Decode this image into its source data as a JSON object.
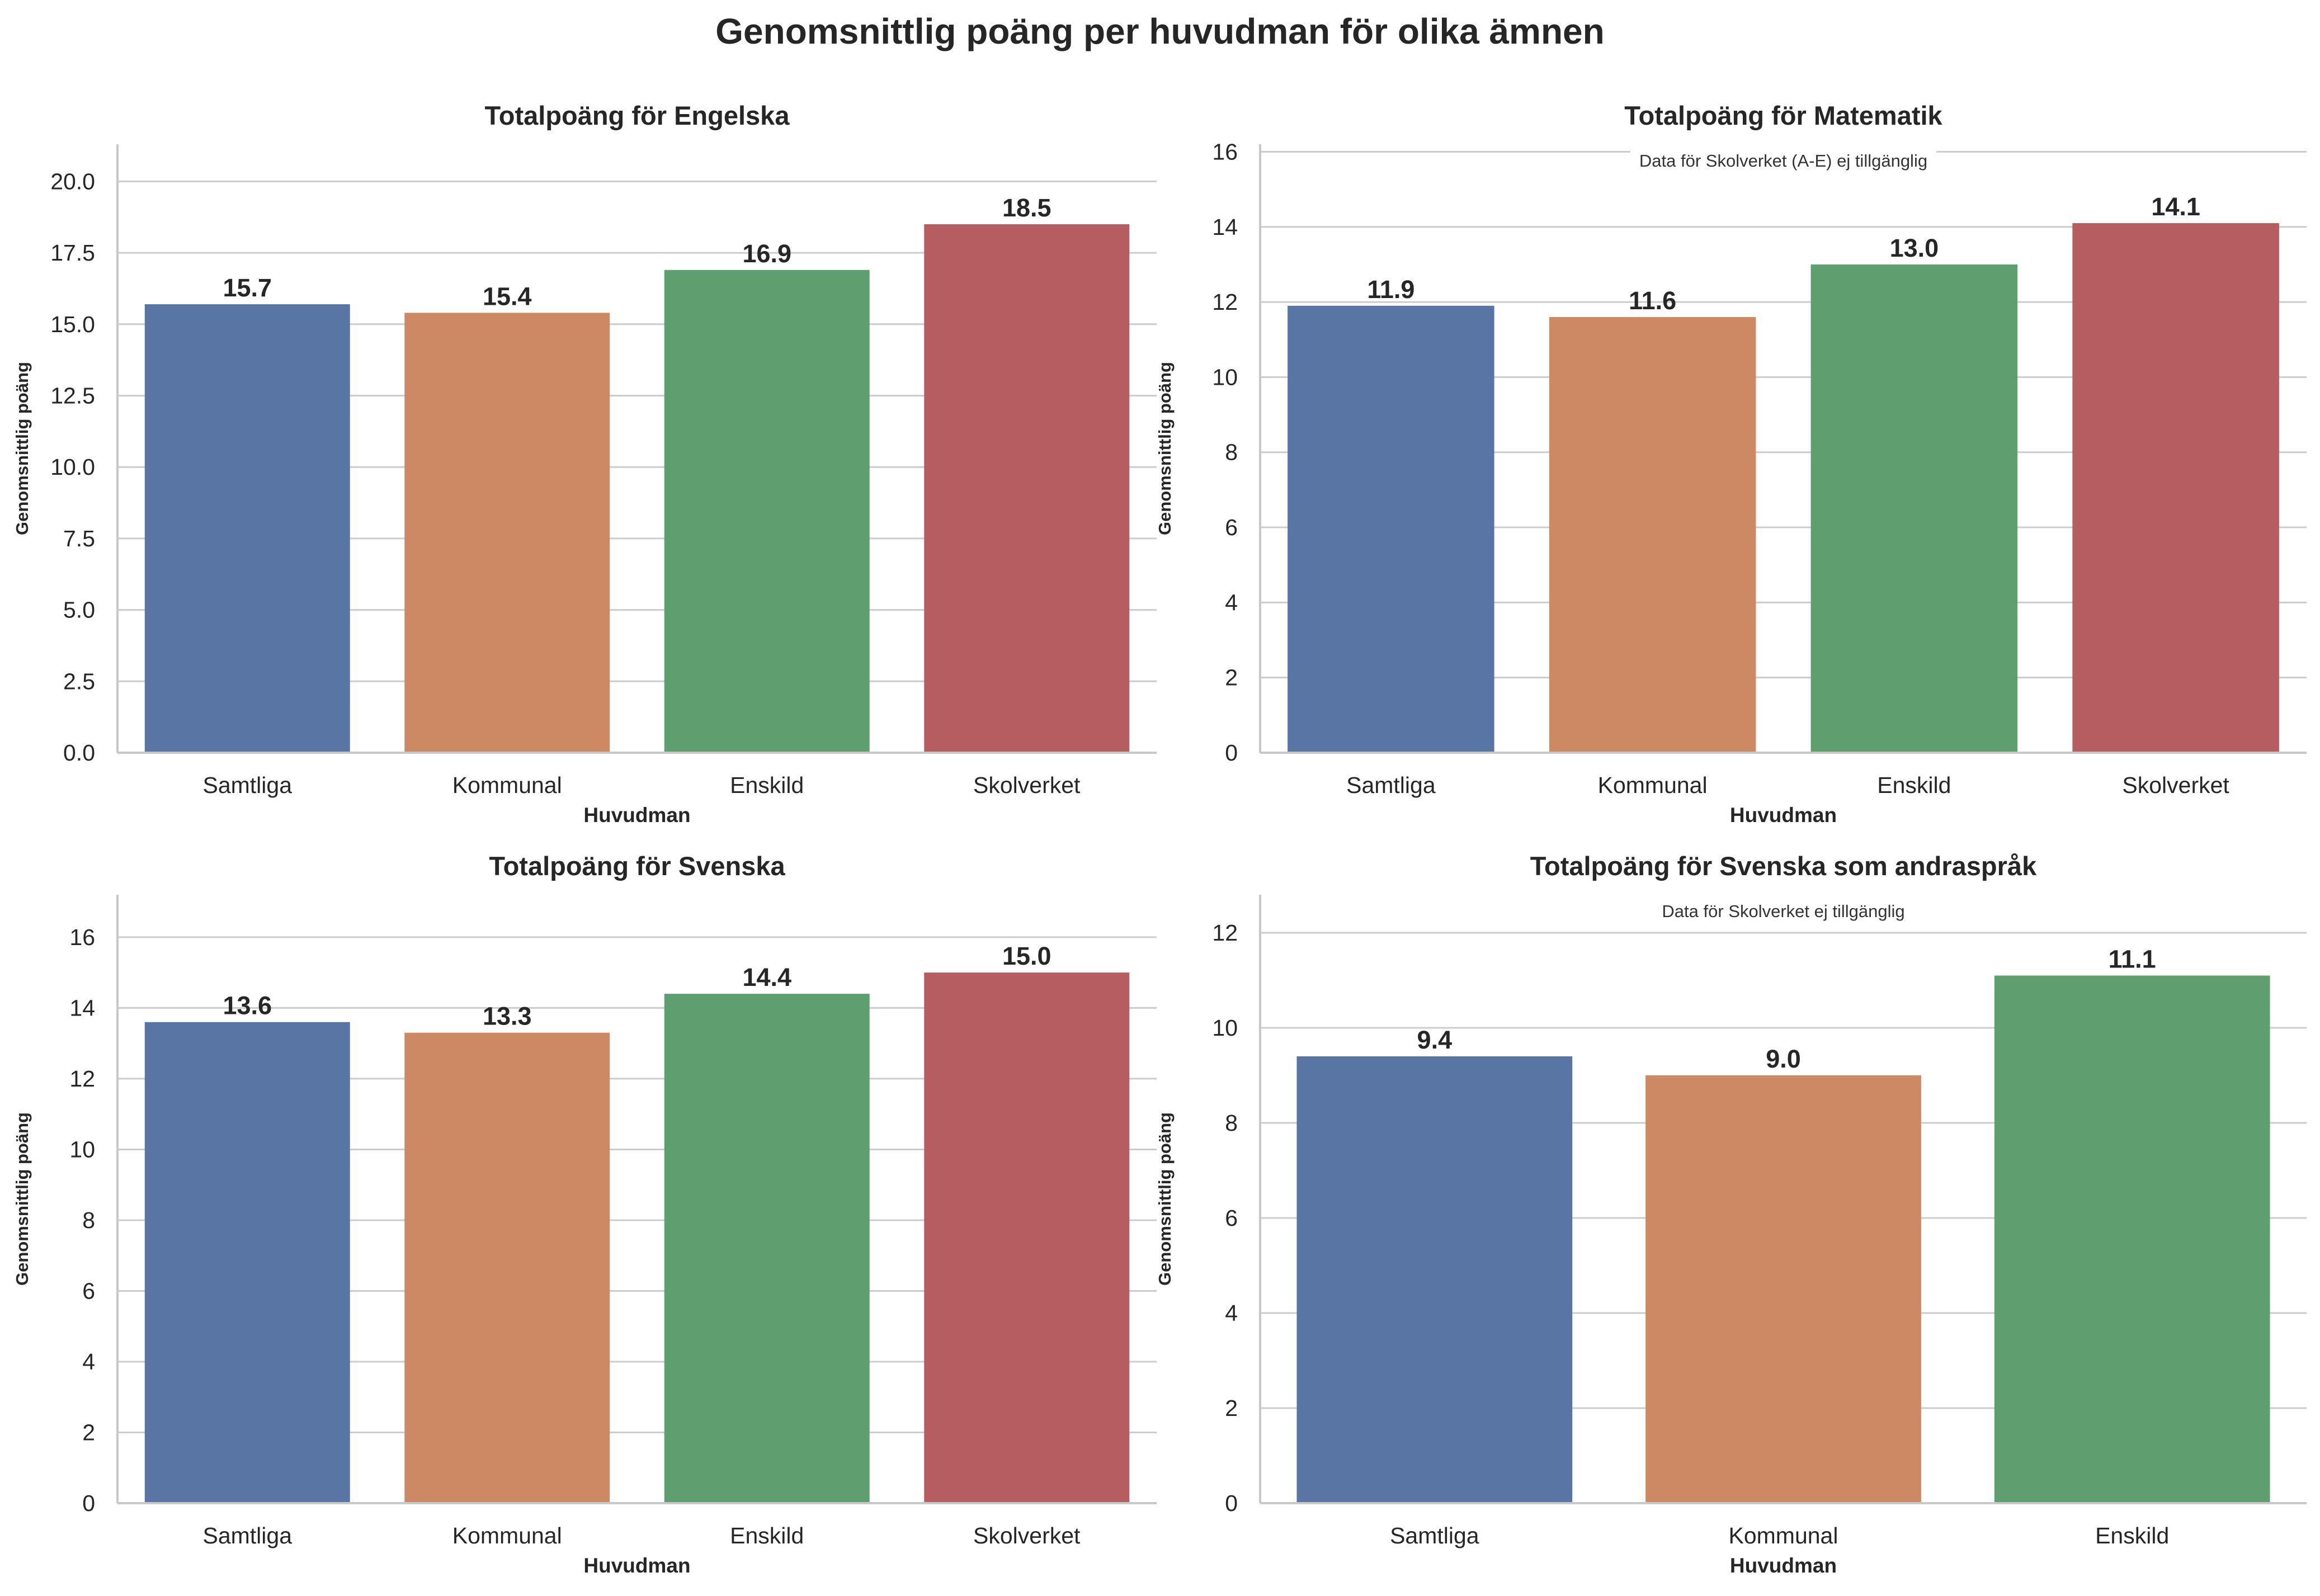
{
  "title": "Genomsnittlig poäng per huvudman för olika ämnen",
  "chart_data": [
    {
      "type": "bar",
      "title": "Totalpoäng för Engelska",
      "xlabel": "Huvudman",
      "ylabel": "Genomsnittlig poäng",
      "categories": [
        "Samtliga",
        "Kommunal",
        "Enskild",
        "Skolverket"
      ],
      "values": [
        15.7,
        15.4,
        16.9,
        18.5
      ],
      "value_labels": [
        "15.7",
        "15.4",
        "16.9",
        "18.5"
      ],
      "ylim": [
        0,
        21.3
      ],
      "yticks": [
        0,
        2.5,
        5,
        7.5,
        10,
        12.5,
        15,
        17.5,
        20
      ],
      "ytick_labels": [
        "0.0",
        "2.5",
        "5.0",
        "7.5",
        "10.0",
        "12.5",
        "15.0",
        "17.5",
        "20.0"
      ],
      "colors": [
        "#5875a4",
        "#cc8963",
        "#5f9e6e",
        "#b55d60"
      ],
      "grid": "horizontal",
      "annotation": ""
    },
    {
      "type": "bar",
      "title": "Totalpoäng för Matematik",
      "xlabel": "Huvudman",
      "ylabel": "Genomsnittlig poäng",
      "categories": [
        "Samtliga",
        "Kommunal",
        "Enskild",
        "Skolverket"
      ],
      "values": [
        11.9,
        11.6,
        13.0,
        14.1
      ],
      "value_labels": [
        "11.9",
        "11.6",
        "13.0",
        "14.1"
      ],
      "ylim": [
        0,
        16.2
      ],
      "yticks": [
        0,
        2,
        4,
        6,
        8,
        10,
        12,
        14,
        16
      ],
      "ytick_labels": [
        "0",
        "2",
        "4",
        "6",
        "8",
        "10",
        "12",
        "14",
        "16"
      ],
      "colors": [
        "#5875a4",
        "#cc8963",
        "#5f9e6e",
        "#b55d60"
      ],
      "grid": "horizontal",
      "annotation": "Data för Skolverket (A-E) ej tillgänglig"
    },
    {
      "type": "bar",
      "title": "Totalpoäng för Svenska",
      "xlabel": "Huvudman",
      "ylabel": "Genomsnittlig poäng",
      "categories": [
        "Samtliga",
        "Kommunal",
        "Enskild",
        "Skolverket"
      ],
      "values": [
        13.6,
        13.3,
        14.4,
        15.0
      ],
      "value_labels": [
        "13.6",
        "13.3",
        "14.4",
        "15.0"
      ],
      "ylim": [
        0,
        17.2
      ],
      "yticks": [
        0,
        2,
        4,
        6,
        8,
        10,
        12,
        14,
        16
      ],
      "ytick_labels": [
        "0",
        "2",
        "4",
        "6",
        "8",
        "10",
        "12",
        "14",
        "16"
      ],
      "colors": [
        "#5875a4",
        "#cc8963",
        "#5f9e6e",
        "#b55d60"
      ],
      "grid": "horizontal",
      "annotation": ""
    },
    {
      "type": "bar",
      "title": "Totalpoäng för Svenska som andraspråk",
      "xlabel": "Huvudman",
      "ylabel": "Genomsnittlig poäng",
      "categories": [
        "Samtliga",
        "Kommunal",
        "Enskild"
      ],
      "values": [
        9.4,
        9.0,
        11.1
      ],
      "value_labels": [
        "9.4",
        "9.0",
        "11.1"
      ],
      "ylim": [
        0,
        12.8
      ],
      "yticks": [
        0,
        2,
        4,
        6,
        8,
        10,
        12
      ],
      "ytick_labels": [
        "0",
        "2",
        "4",
        "6",
        "8",
        "10",
        "12"
      ],
      "colors": [
        "#5875a4",
        "#cc8963",
        "#5f9e6e"
      ],
      "grid": "horizontal",
      "annotation": "Data för Skolverket ej tillgänglig"
    }
  ]
}
